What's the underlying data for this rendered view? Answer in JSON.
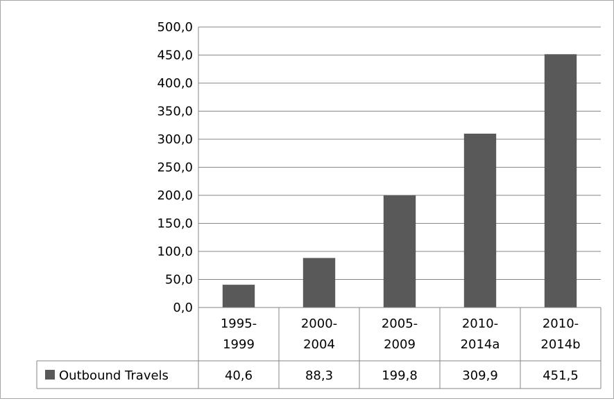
{
  "chart_data": {
    "type": "bar",
    "categories": [
      [
        "1995-",
        "1999"
      ],
      [
        "2000-",
        "2004"
      ],
      [
        "2005-",
        "2009"
      ],
      [
        "2010-",
        "2014a"
      ],
      [
        "2010-",
        "2014b"
      ]
    ],
    "series": [
      {
        "name": "Outbound Travels",
        "values": [
          40.6,
          88.3,
          199.8,
          309.9,
          451.5
        ],
        "value_labels": [
          "40,6",
          "88,3",
          "199,8",
          "309,9",
          "451,5"
        ],
        "color": "#595959"
      }
    ],
    "y_ticks": [
      "0,0",
      "50,0",
      "100,0",
      "150,0",
      "200,0",
      "250,0",
      "300,0",
      "350,0",
      "400,0",
      "450,0",
      "500,0"
    ],
    "ylim": [
      0,
      500
    ],
    "y_step": 50,
    "grid": true,
    "legend": "data-table-left",
    "data_table": true,
    "colors": {
      "bar": "#595959",
      "grid": "#868686",
      "frame": "#a6a6a6"
    }
  }
}
